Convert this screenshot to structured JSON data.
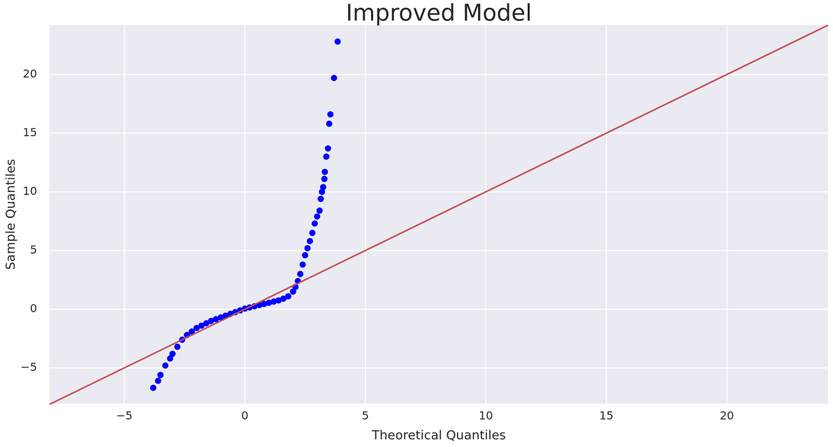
{
  "chart_data": {
    "type": "scatter",
    "title": "Improved Model",
    "x_label": "Theoretical Quantiles",
    "y_label": "Sample Quantiles",
    "color": "#0000ff",
    "background": "#eaeaf2",
    "grid": true,
    "x": [
      -3.8,
      -3.6,
      -3.5,
      -3.3,
      -3.1,
      -3.0,
      -2.8,
      -2.6,
      -2.4,
      -2.2,
      -2.0,
      -1.8,
      -1.6,
      -1.4,
      -1.2,
      -1.0,
      -0.8,
      -0.6,
      -0.4,
      -0.2,
      0.0,
      0.2,
      0.4,
      0.6,
      0.8,
      1.0,
      1.2,
      1.4,
      1.6,
      1.8,
      2.0,
      2.1,
      2.2,
      2.3,
      2.4,
      2.5,
      2.6,
      2.7,
      2.8,
      2.9,
      3.0,
      3.1,
      3.15,
      3.2,
      3.25,
      3.3,
      3.32,
      3.38,
      3.45,
      3.5,
      3.55,
      3.7,
      3.85
    ],
    "values": [
      -6.7,
      -6.1,
      -5.6,
      -4.8,
      -4.2,
      -3.8,
      -3.2,
      -2.6,
      -2.2,
      -1.9,
      -1.6,
      -1.4,
      -1.2,
      -1.0,
      -0.85,
      -0.7,
      -0.55,
      -0.4,
      -0.25,
      -0.1,
      0.05,
      0.15,
      0.25,
      0.35,
      0.45,
      0.55,
      0.65,
      0.75,
      0.9,
      1.1,
      1.5,
      1.9,
      2.4,
      3.0,
      3.8,
      4.6,
      5.2,
      5.8,
      6.5,
      7.3,
      7.9,
      8.4,
      9.4,
      10.0,
      10.4,
      11.1,
      11.7,
      13.0,
      13.7,
      15.8,
      16.6,
      19.7,
      22.8
    ],
    "reference_line": {
      "color": "#c44e52",
      "x": [
        -8.1,
        24.2
      ],
      "y": [
        -8.1,
        24.2
      ]
    },
    "xlim": [
      -8.1,
      24.2
    ],
    "ylim": [
      -8.05,
      24.2
    ],
    "xticks": [
      {
        "value": -5,
        "label": "−5"
      },
      0,
      5,
      10,
      15,
      20
    ],
    "yticks": [
      {
        "value": -5,
        "label": "−5"
      },
      0,
      5,
      10,
      15,
      20
    ]
  }
}
